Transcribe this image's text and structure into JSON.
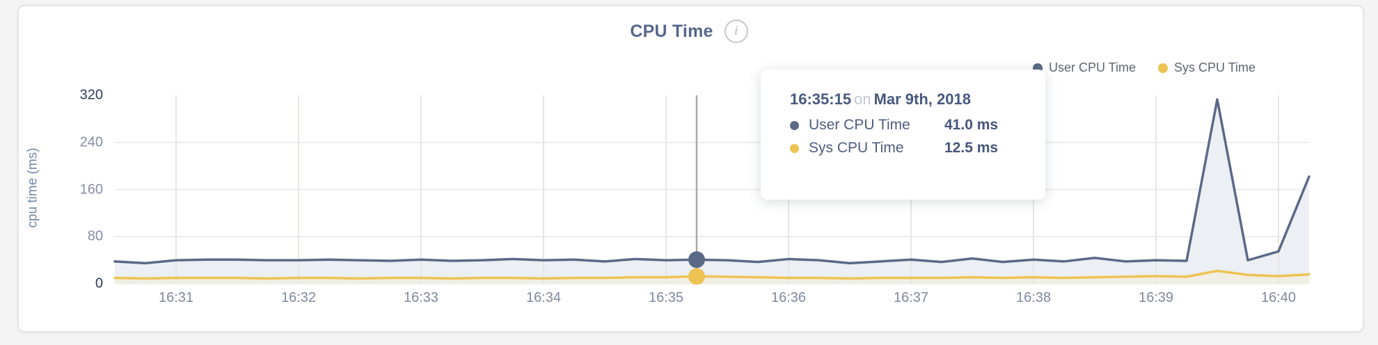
{
  "card": {
    "title": "CPU Time",
    "info_icon_glyph": "i"
  },
  "legend": [
    {
      "label": "User CPU Time",
      "color": "#5b6988"
    },
    {
      "label": "Sys CPU Time",
      "color": "#eec353"
    }
  ],
  "chart_data": {
    "type": "area",
    "title": "CPU Time",
    "xlabel": "",
    "ylabel": "cpu time (ms)",
    "ylim": [
      0,
      320
    ],
    "y_ticks": [
      0,
      80,
      160,
      240,
      320
    ],
    "x_ticks": [
      "16:31",
      "16:32",
      "16:33",
      "16:34",
      "16:35",
      "16:36",
      "16:37",
      "16:38",
      "16:39",
      "16:40"
    ],
    "grid": true,
    "legend_position": "top-right",
    "x": [
      "16:30:30",
      "16:30:45",
      "16:31:00",
      "16:31:15",
      "16:31:30",
      "16:31:45",
      "16:32:00",
      "16:32:15",
      "16:32:30",
      "16:32:45",
      "16:33:00",
      "16:33:15",
      "16:33:30",
      "16:33:45",
      "16:34:00",
      "16:34:15",
      "16:34:30",
      "16:34:45",
      "16:35:00",
      "16:35:15",
      "16:35:30",
      "16:35:45",
      "16:36:00",
      "16:36:15",
      "16:36:30",
      "16:36:45",
      "16:37:00",
      "16:37:15",
      "16:37:30",
      "16:37:45",
      "16:38:00",
      "16:38:15",
      "16:38:30",
      "16:38:45",
      "16:39:00",
      "16:39:15",
      "16:39:30",
      "16:39:45",
      "16:40:00",
      "16:40:15"
    ],
    "series": [
      {
        "name": "User CPU Time",
        "color": "#5b6988",
        "fill": "#eceff3",
        "values": [
          38,
          35,
          40,
          41,
          41,
          40,
          40,
          41,
          40,
          39,
          41,
          39,
          40,
          42,
          40,
          41,
          38,
          42,
          40,
          41,
          40,
          37,
          42,
          40,
          35,
          38,
          41,
          37,
          43,
          37,
          41,
          38,
          44,
          38,
          40,
          39,
          313,
          40,
          55,
          182
        ]
      },
      {
        "name": "Sys CPU Time",
        "color": "#eec353",
        "fill": "#f1eee3",
        "values": [
          10,
          9,
          10,
          10,
          10,
          9,
          10,
          10,
          9,
          10,
          10,
          9,
          10,
          10,
          9,
          10,
          10,
          11,
          11,
          12.5,
          12,
          11,
          10,
          10,
          9,
          10,
          10,
          10,
          11,
          10,
          11,
          10,
          11,
          12,
          13,
          12,
          22,
          15,
          13,
          16
        ]
      }
    ],
    "selected_index": 19
  },
  "tooltip": {
    "time": "16:35:15",
    "conjunction": "on",
    "date": "Mar 9th, 2018",
    "rows": [
      {
        "label": "User CPU Time",
        "value": "41.0 ms",
        "color": "#5b6988"
      },
      {
        "label": "Sys CPU Time",
        "value": "12.5 ms",
        "color": "#eec353"
      }
    ]
  }
}
